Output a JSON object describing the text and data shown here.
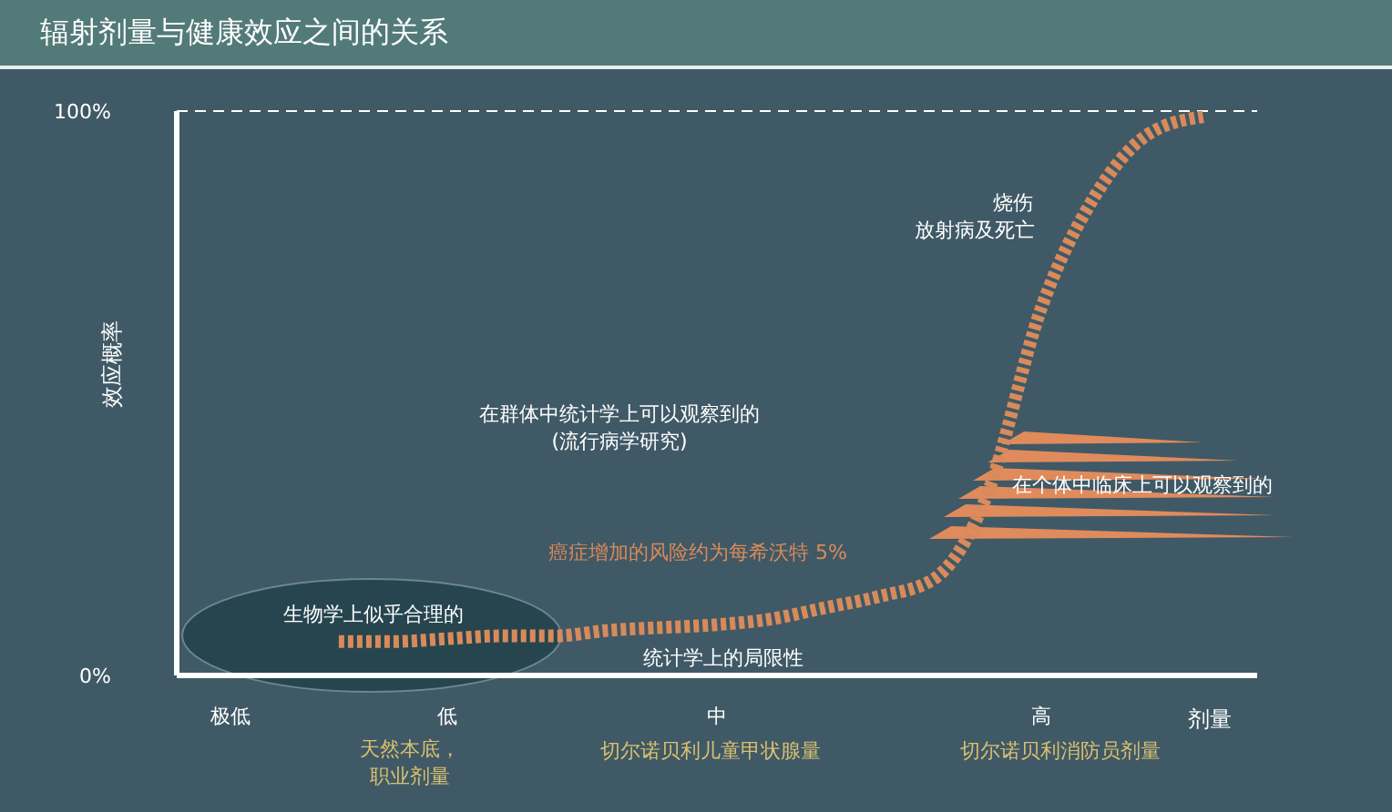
{
  "chart_data": {
    "type": "line",
    "title": "辐射剂量与健康效应之间的关系",
    "xlabel": "剂量",
    "ylabel": "效应概率",
    "categories": [
      null,
      "极低",
      null,
      null,
      null,
      "低",
      null,
      null,
      null,
      null,
      "中",
      null,
      null,
      null,
      null,
      null,
      "高",
      null,
      null,
      null,
      null
    ],
    "values": [
      null,
      null,
      null,
      6,
      6,
      6.5,
      7,
      7,
      8,
      8.5,
      9,
      10,
      12,
      14,
      17,
      32,
      65,
      85,
      96,
      99,
      null
    ],
    "color": "#d98a5a",
    "line_style": "dotted",
    "ylim": [
      0,
      100
    ],
    "yticks": [
      {
        "value": 0,
        "label": "0%"
      },
      {
        "value": 100,
        "label": "100%"
      }
    ],
    "ref_lines": [
      {
        "axis": "y",
        "value": 100,
        "color": "#ffffff",
        "line_style": "dashed"
      }
    ],
    "annotations": [
      "在群体中统计学上可以观察到的",
      "(流行病学研究)",
      "烧伤",
      "放射病及死亡",
      "在个体中临床上可以观察到的",
      "癌症增加的风险约为每希沃特 5%",
      "生物学上似乎合理的",
      "统计学上的局限性",
      "天然本底，",
      "职业剂量",
      "切尔诺贝利儿童甲状腺量",
      "切尔诺贝利消防员剂量"
    ]
  }
}
